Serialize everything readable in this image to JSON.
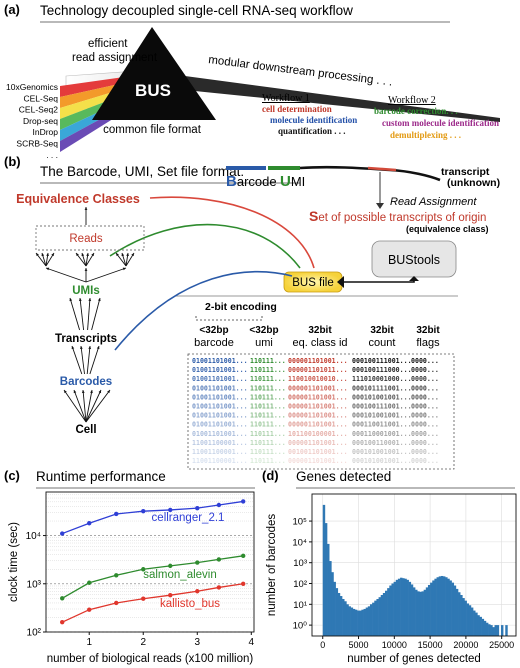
{
  "panel_a": {
    "label": "(a)",
    "title": "Technology decoupled single-cell RNA-seq workflow",
    "efficient": "efficient",
    "read_assignment": "read assignment",
    "bus": "BUS",
    "common_format": "common file format",
    "modular": "modular downstream processing . . .",
    "technologies": [
      "10xGenomics",
      "CEL-Seq",
      "CEL-Seq2",
      "Drop-seq",
      "InDrop",
      "SCRB-Seq",
      ". . ."
    ],
    "workflow1": {
      "title": "Workflow 1",
      "items": [
        {
          "text": "cell determination",
          "color": "#c0392b"
        },
        {
          "text": "molecule identification",
          "color": "#2350a8"
        },
        {
          "text": "quantification . . .",
          "color": "#111111"
        }
      ]
    },
    "workflow2": {
      "title": "Workflow 2",
      "items": [
        {
          "text": "barcode correction. . .",
          "color": "#2e8b2e"
        },
        {
          "text": "custom molecule identification",
          "color": "#9c2a8a"
        },
        {
          "text": "demultiplexing . . .",
          "color": "#e39a12"
        }
      ]
    },
    "rainbow_colors": [
      "#e43b3b",
      "#f39a2a",
      "#f4e04a",
      "#58b95c",
      "#3aa7d8",
      "#6a4bb5"
    ]
  },
  "panel_b": {
    "label": "(b)",
    "title": "The Barcode, UMI, Set file format:",
    "barcode_word": {
      "initial": "B",
      "rest": "arcode"
    },
    "umi_word": {
      "initial": "U",
      "rest": "MI"
    },
    "transcript": "transcript",
    "unknown": "(unknown)",
    "read_assignment": "Read Assignment",
    "set_word": {
      "initial": "S",
      "rest": "et of possible transcripts of origin"
    },
    "eq_class_note": "(equivalence class)",
    "bustools": "BUStools",
    "bus_file": "BUS file",
    "equivalence_classes": "Equivalence Classes",
    "reads": "Reads",
    "umis": "UMIs",
    "transcripts": "Transcripts",
    "barcodes": "Barcodes",
    "cell": "Cell",
    "encoding": "2-bit encoding",
    "columns": [
      {
        "size": "<32bp",
        "name": "barcode"
      },
      {
        "size": "<32bp",
        "name": "umi"
      },
      {
        "size": "32bit",
        "name": "eq. class id"
      },
      {
        "size": "32bit",
        "name": "count"
      },
      {
        "size": "32bit",
        "name": "flags"
      }
    ],
    "rows": [
      [
        "01001101001...",
        "110111...",
        "000001101001...",
        "000100111001...",
        "0000..."
      ],
      [
        "01001101001...",
        "110111...",
        "000001101011...",
        "000100111000...",
        "0000..."
      ],
      [
        "01001101001...",
        "110111...",
        "110010010010...",
        "111010001000...",
        "0000..."
      ],
      [
        "01001101001...",
        "110111...",
        "000001101001...",
        "000101111001...",
        "0000..."
      ],
      [
        "01001101001...",
        "110111...",
        "000001101001...",
        "000101001001...",
        "0000..."
      ],
      [
        "01001101001...",
        "110111...",
        "000001101001...",
        "000100111001...",
        "0000..."
      ],
      [
        "01001101001...",
        "110111...",
        "000001101001...",
        "000101001001...",
        "0000..."
      ],
      [
        "01001101001...",
        "110111...",
        "000001101001...",
        "000110011001...",
        "0000..."
      ],
      [
        "01001101001...",
        "110111...",
        "101100100001...",
        "000110001001...",
        "0000..."
      ],
      [
        "11001100001...",
        "110111...",
        "000001101001...",
        "000100110001...",
        "0000..."
      ],
      [
        "11001100001...",
        "110111...",
        "001001101001...",
        "000101001001...",
        "0000..."
      ],
      [
        "11001100001...",
        "110111...",
        "000001101001...",
        "000101001001...",
        "0000..."
      ]
    ],
    "colors": {
      "barcode": "#2a5aa8",
      "umi": "#2e8b2e",
      "eq": "#c0392b",
      "bus_fill": "#f6d23a"
    }
  },
  "panel_c": {
    "label": "(c)",
    "title": "Runtime performance",
    "chart_data": {
      "type": "line",
      "xlabel": "number of biological reads (x100 million)",
      "ylabel": "clock time (sec)",
      "xlim": [
        0.2,
        4.05
      ],
      "ylim": [
        100,
        80000
      ],
      "log_y": true,
      "xticks": [
        1,
        2,
        3,
        4
      ],
      "yticks": [
        {
          "v": 100,
          "label": "10²"
        },
        {
          "v": 1000,
          "label": "10³"
        },
        {
          "v": 10000,
          "label": "10⁴"
        }
      ],
      "x": [
        0.5,
        1.0,
        1.5,
        2.0,
        2.5,
        3.0,
        3.4,
        3.85
      ],
      "series": [
        {
          "name": "cellranger_2.1",
          "color": "#2f3fd6",
          "values": [
            11000,
            18000,
            28000,
            32000,
            34000,
            37000,
            43000,
            51000
          ]
        },
        {
          "name": "salmon_alevin",
          "color": "#2e8b2e",
          "values": [
            500,
            1050,
            1500,
            2000,
            2350,
            2750,
            3200,
            3800
          ]
        },
        {
          "name": "kallisto_bus",
          "color": "#e0362c",
          "values": [
            160,
            290,
            400,
            490,
            580,
            700,
            840,
            1000
          ]
        }
      ]
    }
  },
  "panel_d": {
    "label": "(d)",
    "title": "Genes detected",
    "chart_data": {
      "type": "bar",
      "xlabel": "number of genes detected",
      "ylabel": "number of barcodes",
      "xlim": [
        -1500,
        27000
      ],
      "ylim": [
        0.3,
        2000000
      ],
      "log_y": true,
      "xticks": [
        0,
        5000,
        10000,
        15000,
        20000,
        25000
      ],
      "yticks": [
        {
          "v": 1,
          "label": "10⁰"
        },
        {
          "v": 10,
          "label": "10¹"
        },
        {
          "v": 100,
          "label": "10²"
        },
        {
          "v": 1000,
          "label": "10³"
        },
        {
          "v": 10000,
          "label": "10⁴"
        },
        {
          "v": 100000,
          "label": "10⁵"
        }
      ],
      "bin_width": 300,
      "bin_start": 0,
      "color": "#2f78b4",
      "values": [
        600000,
        80000,
        8000,
        1200,
        350,
        120,
        60,
        35,
        25,
        18,
        14,
        10,
        8,
        7,
        6,
        5.5,
        5,
        5,
        5.5,
        6,
        7,
        8,
        10,
        12,
        15,
        18,
        22,
        28,
        35,
        45,
        60,
        80,
        100,
        120,
        150,
        170,
        190,
        180,
        170,
        150,
        120,
        90,
        65,
        50,
        42,
        40,
        42,
        50,
        65,
        85,
        110,
        140,
        170,
        200,
        220,
        230,
        220,
        200,
        170,
        140,
        110,
        80,
        55,
        38,
        28,
        20,
        15,
        11,
        9,
        7,
        5,
        4,
        3,
        2.5,
        2,
        1.6,
        1.3,
        1.1,
        1,
        0.8,
        1,
        1,
        0,
        1,
        0,
        1
      ]
    }
  }
}
